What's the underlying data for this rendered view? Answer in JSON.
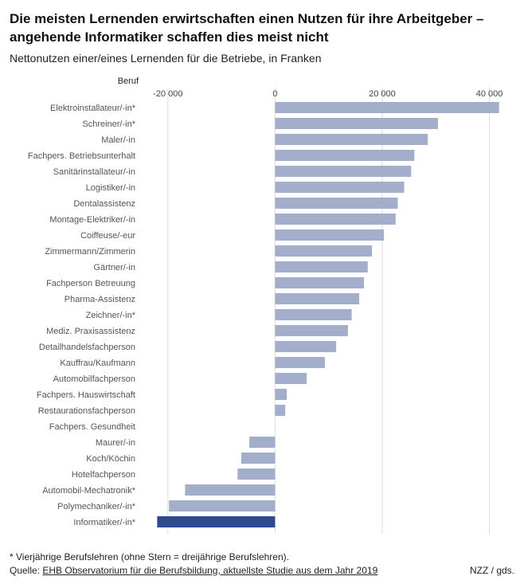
{
  "title": "Die meisten Lernenden erwirtschaften einen Nutzen für ihre Arbeitgeber – angehende Informatiker schaffen dies meist nicht",
  "subtitle": "Nettonutzen einer/eines Lernenden für die Betriebe, in Franken",
  "footnote": "* Vierjährige Berufslehren (ohne Stern = dreijährige Berufslehren).",
  "source": {
    "prefix": "Quelle: ",
    "link_text": "EHB Observatorium für die Berufsbildung, aktuellste Studie aus dem Jahr 2019"
  },
  "credit": "NZZ / gds.",
  "colors": {
    "bar": "#a3aecb",
    "highlight_bar": "#2e4a8e",
    "grid": "#dcdcdc",
    "label": "#555555"
  },
  "chart_data": {
    "type": "bar",
    "orientation": "horizontal",
    "category_header": "Beruf",
    "xlim": [
      -22500,
      42000
    ],
    "xticks": [
      -20000,
      0,
      20000,
      40000
    ],
    "xtick_labels": [
      "-20 000",
      "0",
      "20 000",
      "40 000"
    ],
    "grid": true,
    "categories": [
      "Elektroinstallateur/-in*",
      "Schreiner/-in*",
      "Maler/-in",
      "Fachpers. Betriebsunterhalt",
      "Sanitärinstallateur/-in",
      "Logistiker/-in",
      "Dentalassistenz",
      "Montage-Elektriker/-in",
      "Coiffeuse/-eur",
      "Zimmermann/Zimmerin",
      "Gärtner/-in",
      "Fachperson Betreuung",
      "Pharma-Assistenz",
      "Zeichner/-in*",
      "Mediz. Praxisassistenz",
      "Detailhandelsfachperson",
      "Kauffrau/Kaufmann",
      "Automobilfachperson",
      "Fachpers. Hauswirtschaft",
      "Restaurationsfachperson",
      "Fachpers. Gesundheit",
      "Maurer/-in",
      "Koch/Köchin",
      "Hotelfachperson",
      "Automobil-Mechatronik*",
      "Polymechaniker/-in*",
      "Informatiker/-in*"
    ],
    "values": [
      41800,
      30400,
      28500,
      26000,
      25400,
      24100,
      22900,
      22500,
      20300,
      18100,
      17300,
      16600,
      15700,
      14300,
      13600,
      11400,
      9300,
      5900,
      2200,
      1900,
      0,
      -4800,
      -6300,
      -7000,
      -16800,
      -19800,
      -22000
    ],
    "highlight": [
      "Informatiker/-in*"
    ]
  }
}
